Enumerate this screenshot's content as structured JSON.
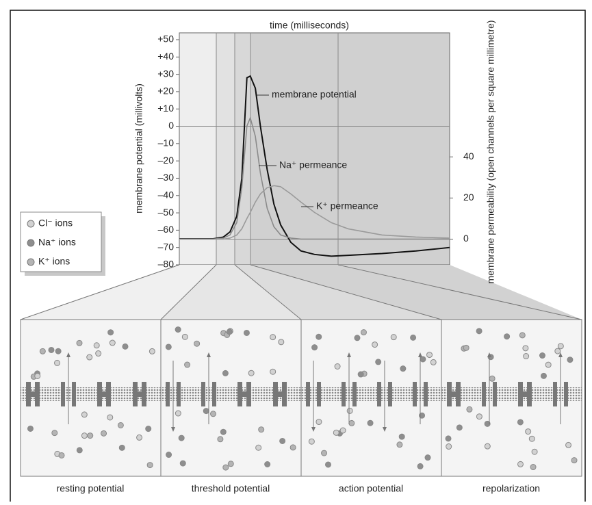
{
  "chart_data": {
    "type": "line",
    "xlabel": "time (milliseconds)",
    "ylabel": "membrane potential (millivolts)",
    "y2label": "membrane permeability (open channels per square millimetre)",
    "x": [
      0,
      0.5,
      1,
      1.3,
      1.5,
      1.7,
      1.85,
      2.0,
      2.1,
      2.25,
      2.4,
      2.6,
      2.8,
      3.0,
      3.3,
      3.6,
      4.0,
      4.5,
      5,
      6,
      7,
      8
    ],
    "xlim": [
      0,
      8
    ],
    "ylim": [
      -80,
      50
    ],
    "yticks": [
      {
        "value": 50,
        "label": "+50"
      },
      {
        "value": 40,
        "label": "+40"
      },
      {
        "value": 30,
        "label": "+30"
      },
      {
        "value": 20,
        "label": "+20"
      },
      {
        "value": 10,
        "label": "+10"
      },
      0,
      {
        "value": -10,
        "label": "–10"
      },
      {
        "value": -20,
        "label": "–20"
      },
      {
        "value": -30,
        "label": "–30"
      },
      {
        "value": -40,
        "label": "–40"
      },
      {
        "value": -50,
        "label": "–50"
      },
      {
        "value": -60,
        "label": "–60"
      },
      {
        "value": -70,
        "label": "–70"
      },
      {
        "value": -80,
        "label": "–80"
      }
    ],
    "y2lim": [
      -12.5,
      97
    ],
    "y2ticks": [
      0,
      20,
      40
    ],
    "series": [
      {
        "name": "membrane potential",
        "color": "#111111",
        "values": [
          -65,
          -65,
          -65,
          -64,
          -61,
          -52,
          -30,
          28,
          29,
          22,
          0,
          -25,
          -45,
          -57,
          -67,
          -72,
          -74,
          -75,
          -74.5,
          -73.5,
          -72,
          -70
        ]
      },
      {
        "name": "Na⁺ permeance",
        "color": "#8a8a8a",
        "axis": "y2",
        "values": [
          0,
          0,
          0,
          0.5,
          2,
          8,
          25,
          55,
          59,
          50,
          32,
          15,
          6,
          2,
          0.5,
          0,
          0,
          0,
          0,
          0,
          0,
          0
        ]
      },
      {
        "name": "K⁺ permeance",
        "color": "#9a9a9a",
        "axis": "y2",
        "values": [
          0,
          0,
          0,
          0,
          0.5,
          2,
          5,
          10,
          13,
          18,
          22,
          25,
          26,
          25.5,
          22,
          18,
          13,
          8,
          5,
          2,
          1,
          0.5
        ]
      }
    ]
  },
  "legend": {
    "items": [
      {
        "label": "Cl⁻ ions",
        "color": "#d2d2d2"
      },
      {
        "label": "Na⁺ ions",
        "color": "#8e8e8e"
      },
      {
        "label": "K⁺ ions",
        "color": "#b4b4b4"
      }
    ]
  },
  "panels": [
    "resting potential",
    "threshold potential",
    "action potential",
    "repolarization"
  ]
}
